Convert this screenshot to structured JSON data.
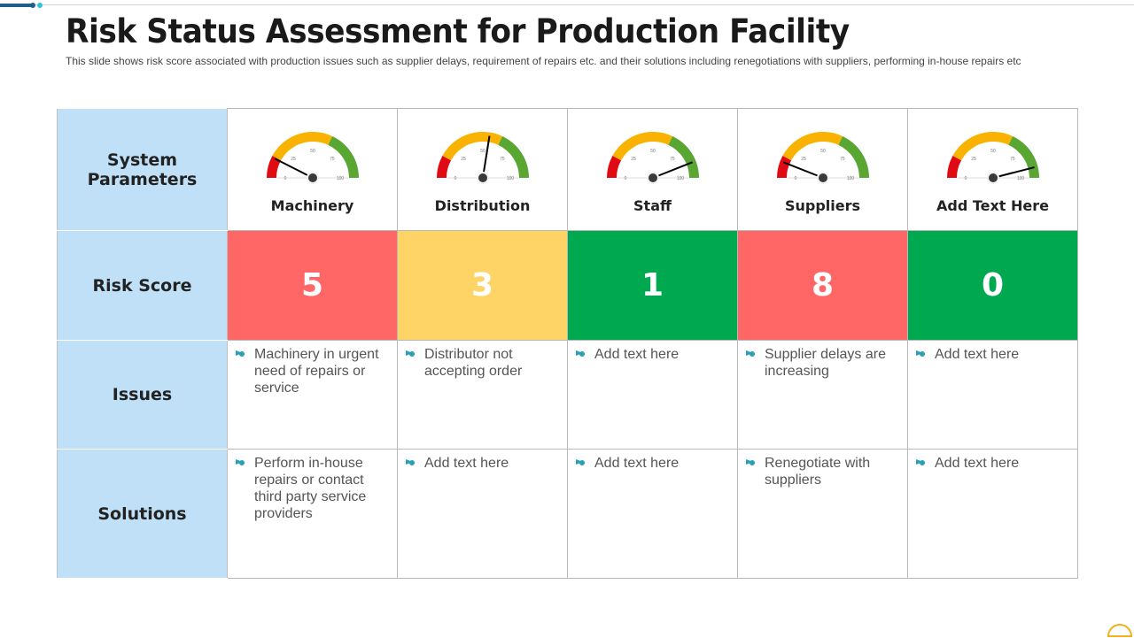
{
  "title": "Risk Status Assessment for Production Facility",
  "subtitle": "This slide shows risk score associated with production issues such as supplier delays, requirement  of repairs  etc. and their solutions including renegotiations  with suppliers, performing  in-house repairs etc",
  "row_headers": [
    "System Parameters",
    "Risk Score",
    "Issues",
    "Solutions"
  ],
  "gauge_ticks": [
    "0",
    "25",
    "50",
    "75",
    "100"
  ],
  "gauge_colors": {
    "low": "#e00a12",
    "mid": "#f9b200",
    "high": "#5aa632"
  },
  "columns": [
    {
      "name": "Machinery",
      "needle": 15,
      "score": "5",
      "score_color": "#ff6666",
      "issue": "Machinery in urgent need of repairs or service",
      "solution": "Perform in-house repairs or contact third party service providers"
    },
    {
      "name": "Distribution",
      "needle": 55,
      "score": "3",
      "score_color": "#ffd466",
      "issue": "Distributor not accepting order",
      "solution": "Add text here"
    },
    {
      "name": "Staff",
      "needle": 88,
      "score": "1",
      "score_color": "#00a84f",
      "issue": "Add text here",
      "solution": "Add text here"
    },
    {
      "name": "Suppliers",
      "needle": 12,
      "score": "8",
      "score_color": "#ff6666",
      "issue": "Supplier delays are increasing",
      "solution": "Renegotiate with suppliers"
    },
    {
      "name": "Add Text Here",
      "needle": 92,
      "score": "0",
      "score_color": "#00a84f",
      "issue": "Add text here",
      "solution": "Add text here"
    }
  ]
}
